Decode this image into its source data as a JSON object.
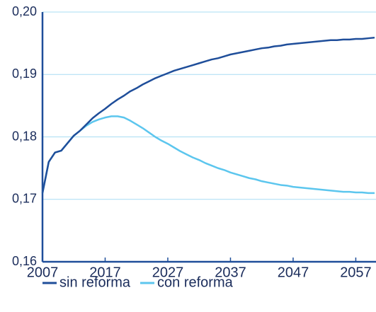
{
  "chart_data": {
    "type": "line",
    "x": [
      2007,
      2008,
      2009,
      2010,
      2011,
      2012,
      2013,
      2014,
      2015,
      2016,
      2017,
      2018,
      2019,
      2020,
      2021,
      2022,
      2023,
      2024,
      2025,
      2026,
      2027,
      2028,
      2029,
      2030,
      2031,
      2032,
      2033,
      2034,
      2035,
      2036,
      2037,
      2038,
      2039,
      2040,
      2041,
      2042,
      2043,
      2044,
      2045,
      2046,
      2047,
      2048,
      2049,
      2050,
      2051,
      2052,
      2053,
      2054,
      2055,
      2056,
      2057,
      2058,
      2059,
      2060
    ],
    "series": [
      {
        "name": "sin reforma",
        "color": "#1f4e9a",
        "values": [
          0.171,
          0.176,
          0.1775,
          0.1778,
          0.179,
          0.1802,
          0.181,
          0.182,
          0.183,
          0.1838,
          0.1845,
          0.1853,
          0.186,
          0.1866,
          0.1873,
          0.1878,
          0.1884,
          0.1889,
          0.1894,
          0.1898,
          0.1902,
          0.1906,
          0.1909,
          0.1912,
          0.1915,
          0.1918,
          0.1921,
          0.1924,
          0.1926,
          0.1929,
          0.1932,
          0.1934,
          0.1936,
          0.1938,
          0.194,
          0.1942,
          0.1943,
          0.1945,
          0.1946,
          0.1948,
          0.1949,
          0.195,
          0.1951,
          0.1952,
          0.1953,
          0.1954,
          0.1955,
          0.1955,
          0.1956,
          0.1956,
          0.1957,
          0.1957,
          0.1958,
          0.1959
        ]
      },
      {
        "name": "con reforma",
        "color": "#5cc6ee",
        "values": [
          0.171,
          0.176,
          0.1775,
          0.1778,
          0.179,
          0.1802,
          0.181,
          0.1818,
          0.1824,
          0.1828,
          0.1831,
          0.1833,
          0.1833,
          0.1831,
          0.1826,
          0.182,
          0.1814,
          0.1807,
          0.18,
          0.1794,
          0.1789,
          0.1783,
          0.1777,
          0.1772,
          0.1767,
          0.1763,
          0.1758,
          0.1754,
          0.175,
          0.1747,
          0.1743,
          0.174,
          0.1737,
          0.1734,
          0.1732,
          0.1729,
          0.1727,
          0.1725,
          0.1723,
          0.1722,
          0.172,
          0.1719,
          0.1718,
          0.1717,
          0.1716,
          0.1715,
          0.1714,
          0.1713,
          0.1712,
          0.1712,
          0.1711,
          0.1711,
          0.171,
          0.171
        ]
      }
    ],
    "xlim": [
      2007,
      2060
    ],
    "xticks": [
      2007,
      2017,
      2027,
      2037,
      2047,
      2057
    ],
    "ylim": [
      0.16,
      0.2
    ],
    "yticks": [
      {
        "value": 0.16,
        "label": "0,16"
      },
      {
        "value": 0.17,
        "label": "0,17"
      },
      {
        "value": 0.18,
        "label": "0,18"
      },
      {
        "value": 0.19,
        "label": "0,19"
      },
      {
        "value": 0.2,
        "label": "0,20"
      }
    ],
    "grid": true
  }
}
